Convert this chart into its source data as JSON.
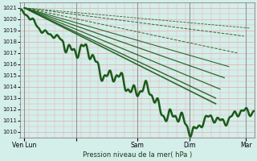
{
  "xlabel": "Pression niveau de la mer( hPa )",
  "ylim": [
    1009.5,
    1021.5
  ],
  "yticks": [
    1010,
    1011,
    1012,
    1013,
    1014,
    1015,
    1016,
    1017,
    1018,
    1019,
    1020,
    1021
  ],
  "xlim": [
    0,
    108
  ],
  "bg_color": "#d4eeea",
  "grid_color": "#e8aaaa",
  "line_color": "#1a5a1a",
  "day_line_color": "#888888",
  "xtick_positions": [
    2,
    26,
    54,
    78,
    104
  ],
  "xtick_labels": [
    "Ven Lun",
    "",
    "Sam",
    "Dim",
    "Mar"
  ],
  "forecast_starts": [
    1021.0,
    1021.0,
    1021.0,
    1021.0,
    1021.0,
    1021.0,
    1021.0,
    1021.0
  ],
  "forecast_ends": [
    1012.5,
    1013.0,
    1013.8,
    1014.8,
    1015.8,
    1017.0,
    1018.5,
    1019.2
  ],
  "forecast_x_end": [
    90,
    90,
    90,
    90,
    90,
    90,
    90,
    90
  ],
  "forecast_styles": [
    "-",
    "-",
    "-",
    "-",
    "-",
    "--",
    "--",
    "--"
  ],
  "forecast_lw": [
    1.2,
    1.0,
    0.9,
    0.9,
    0.8,
    0.7,
    0.7,
    0.6
  ]
}
